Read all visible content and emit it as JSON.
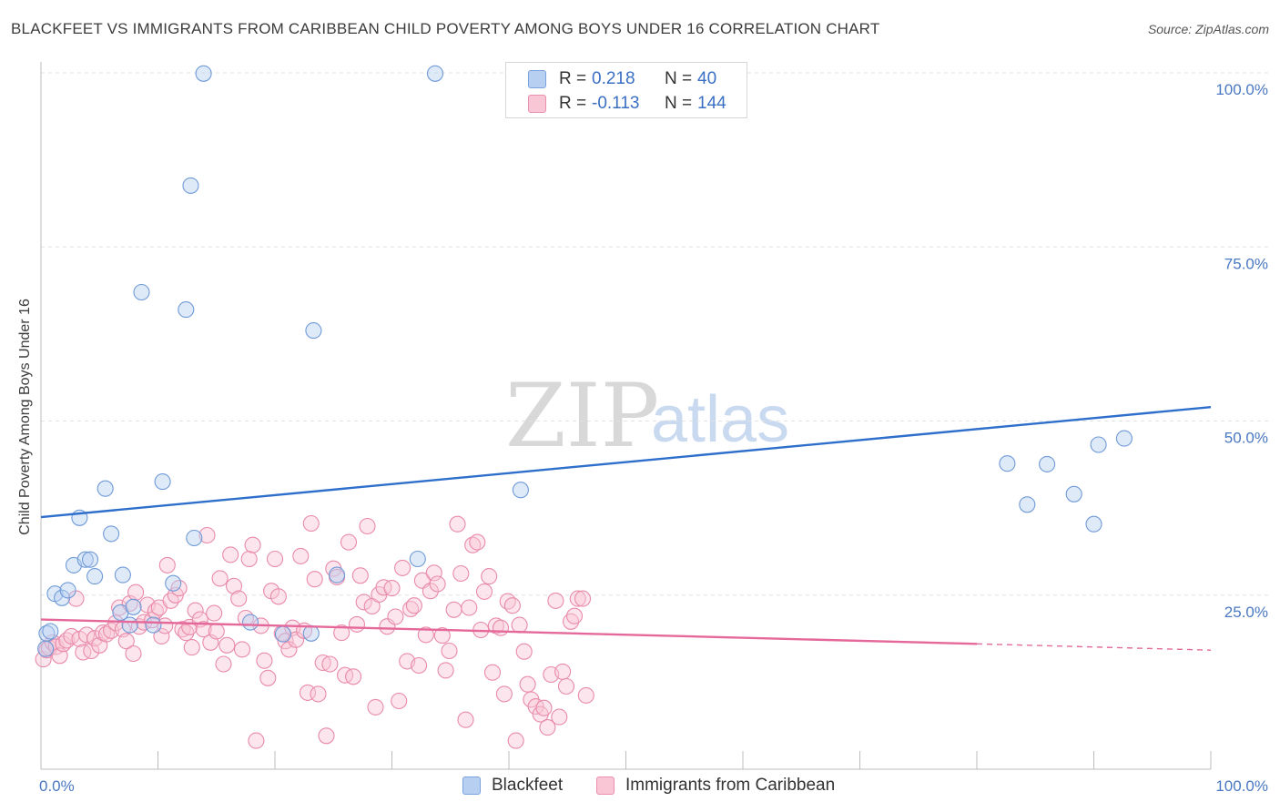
{
  "header": {
    "title": "BLACKFEET VS IMMIGRANTS FROM CARIBBEAN CHILD POVERTY AMONG BOYS UNDER 16 CORRELATION CHART",
    "source": "Source: ZipAtlas.com"
  },
  "watermark": {
    "zip": "ZIP",
    "atlas": "atlas"
  },
  "legend": {
    "rows": [
      {
        "r_label": "R =",
        "r_value": "0.218",
        "n_label": "N =",
        "n_value": "40"
      },
      {
        "r_label": "R =",
        "r_value": "-0.113",
        "n_label": "N =",
        "n_value": "144"
      }
    ]
  },
  "bottom_legend": {
    "series1": "Blackfeet",
    "series2": "Immigrants from Caribbean"
  },
  "colors": {
    "blue_fill": "#b7d0f2",
    "blue_stroke": "#6f9ad8",
    "blue_line": "#2f6fcc",
    "pink_fill": "#f8c6d5",
    "pink_stroke": "#e98aab",
    "pink_line": "#e4699a",
    "tick_text": "#4a78c2",
    "grid": "#e2e2e2"
  },
  "chart_data": {
    "type": "scatter",
    "title": "BLACKFEET VS IMMIGRANTS FROM CARIBBEAN CHILD POVERTY AMONG BOYS UNDER 16 CORRELATION CHART",
    "xlabel": "",
    "ylabel": "Child Poverty Among Boys Under 16",
    "xlim": [
      0,
      100
    ],
    "ylim": [
      0,
      100
    ],
    "x_tick_labels": [
      "0.0%",
      "100.0%"
    ],
    "y_ticks": [
      25,
      50,
      75,
      100
    ],
    "y_tick_labels": [
      "25.0%",
      "50.0%",
      "75.0%",
      "100.0%"
    ],
    "grid": true,
    "series": [
      {
        "name": "Blackfeet",
        "color": "#b7d0f2",
        "points": [
          [
            0.5,
            19.5
          ],
          [
            0.8,
            19.8
          ],
          [
            1.2,
            25.2
          ],
          [
            1.8,
            24.6
          ],
          [
            2.3,
            25.7
          ],
          [
            2.8,
            29.3
          ],
          [
            3.3,
            36.1
          ],
          [
            3.8,
            30.1
          ],
          [
            4.2,
            30.1
          ],
          [
            4.6,
            27.7
          ],
          [
            5.5,
            40.3
          ],
          [
            6.0,
            33.8
          ],
          [
            6.8,
            22.5
          ],
          [
            7.0,
            27.9
          ],
          [
            7.6,
            20.7
          ],
          [
            7.9,
            23.3
          ],
          [
            8.6,
            68.5
          ],
          [
            9.6,
            20.7
          ],
          [
            10.4,
            41.3
          ],
          [
            11.3,
            26.7
          ],
          [
            12.4,
            66.0
          ],
          [
            12.8,
            83.8
          ],
          [
            13.1,
            33.2
          ],
          [
            13.9,
            99.9
          ],
          [
            17.9,
            21.1
          ],
          [
            20.7,
            19.4
          ],
          [
            23.1,
            19.5
          ],
          [
            23.3,
            63.0
          ],
          [
            25.3,
            27.9
          ],
          [
            32.2,
            30.2
          ],
          [
            33.7,
            99.9
          ],
          [
            41.0,
            40.1
          ],
          [
            82.6,
            43.9
          ],
          [
            84.3,
            38.0
          ],
          [
            86.0,
            43.8
          ],
          [
            88.3,
            39.5
          ],
          [
            90.0,
            35.2
          ],
          [
            90.4,
            46.6
          ],
          [
            92.6,
            47.5
          ],
          [
            0.4,
            17.3
          ]
        ]
      },
      {
        "name": "Immigrants from Caribbean",
        "color": "#f8c6d5",
        "points": [
          [
            0.2,
            15.8
          ],
          [
            0.5,
            17.1
          ],
          [
            0.7,
            17.4
          ],
          [
            1.0,
            18.2
          ],
          [
            1.3,
            17.6
          ],
          [
            1.6,
            16.3
          ],
          [
            1.9,
            18.0
          ],
          [
            2.2,
            18.5
          ],
          [
            2.6,
            19.1
          ],
          [
            3.0,
            24.5
          ],
          [
            3.3,
            18.7
          ],
          [
            3.6,
            16.8
          ],
          [
            3.9,
            19.3
          ],
          [
            4.3,
            17.0
          ],
          [
            4.6,
            18.8
          ],
          [
            5.0,
            17.8
          ],
          [
            5.3,
            19.6
          ],
          [
            5.6,
            19.4
          ],
          [
            6.0,
            19.9
          ],
          [
            6.4,
            21.0
          ],
          [
            6.7,
            23.2
          ],
          [
            7.0,
            20.1
          ],
          [
            7.3,
            18.4
          ],
          [
            7.6,
            23.8
          ],
          [
            7.9,
            16.6
          ],
          [
            8.1,
            25.4
          ],
          [
            8.4,
            20.5
          ],
          [
            8.8,
            21.1
          ],
          [
            9.1,
            23.6
          ],
          [
            9.5,
            21.4
          ],
          [
            9.8,
            22.7
          ],
          [
            10.1,
            23.2
          ],
          [
            10.3,
            19.1
          ],
          [
            10.6,
            20.6
          ],
          [
            10.8,
            29.3
          ],
          [
            11.1,
            24.2
          ],
          [
            11.5,
            25.0
          ],
          [
            11.8,
            26.0
          ],
          [
            12.1,
            20.1
          ],
          [
            12.4,
            19.6
          ],
          [
            12.7,
            20.4
          ],
          [
            12.9,
            17.5
          ],
          [
            13.2,
            22.8
          ],
          [
            13.6,
            21.5
          ],
          [
            13.9,
            20.1
          ],
          [
            14.2,
            33.6
          ],
          [
            14.5,
            18.2
          ],
          [
            14.8,
            22.4
          ],
          [
            15.0,
            19.8
          ],
          [
            15.3,
            27.4
          ],
          [
            15.6,
            15.1
          ],
          [
            15.9,
            17.8
          ],
          [
            16.2,
            30.8
          ],
          [
            16.5,
            26.3
          ],
          [
            16.9,
            24.5
          ],
          [
            17.2,
            17.2
          ],
          [
            17.5,
            21.7
          ],
          [
            17.8,
            30.2
          ],
          [
            18.1,
            32.2
          ],
          [
            18.4,
            4.1
          ],
          [
            18.8,
            20.6
          ],
          [
            19.1,
            15.6
          ],
          [
            19.4,
            13.1
          ],
          [
            19.7,
            25.6
          ],
          [
            20.0,
            30.2
          ],
          [
            20.3,
            24.8
          ],
          [
            20.6,
            19.5
          ],
          [
            20.9,
            18.4
          ],
          [
            21.2,
            17.2
          ],
          [
            21.5,
            20.3
          ],
          [
            21.8,
            18.6
          ],
          [
            22.2,
            30.6
          ],
          [
            22.5,
            19.9
          ],
          [
            22.8,
            11.0
          ],
          [
            23.1,
            35.3
          ],
          [
            23.4,
            27.3
          ],
          [
            23.7,
            10.8
          ],
          [
            24.1,
            15.3
          ],
          [
            24.4,
            4.8
          ],
          [
            24.7,
            15.1
          ],
          [
            25.0,
            28.8
          ],
          [
            25.3,
            27.6
          ],
          [
            25.7,
            19.6
          ],
          [
            26.0,
            13.5
          ],
          [
            26.3,
            32.6
          ],
          [
            26.7,
            13.3
          ],
          [
            27.0,
            20.8
          ],
          [
            27.3,
            27.8
          ],
          [
            27.6,
            24.0
          ],
          [
            27.9,
            34.9
          ],
          [
            28.3,
            23.4
          ],
          [
            28.6,
            8.9
          ],
          [
            28.9,
            25.1
          ],
          [
            29.3,
            26.1
          ],
          [
            29.6,
            20.5
          ],
          [
            30.0,
            26.0
          ],
          [
            30.3,
            21.9
          ],
          [
            30.6,
            9.8
          ],
          [
            30.9,
            28.9
          ],
          [
            31.3,
            15.5
          ],
          [
            31.6,
            23.0
          ],
          [
            31.9,
            23.5
          ],
          [
            32.3,
            14.9
          ],
          [
            32.6,
            27.1
          ],
          [
            32.9,
            19.3
          ],
          [
            33.3,
            25.6
          ],
          [
            33.6,
            28.2
          ],
          [
            33.9,
            26.6
          ],
          [
            34.3,
            19.2
          ],
          [
            34.6,
            14.2
          ],
          [
            34.9,
            17.0
          ],
          [
            35.3,
            22.9
          ],
          [
            35.6,
            35.2
          ],
          [
            35.9,
            28.1
          ],
          [
            36.3,
            7.1
          ],
          [
            36.6,
            23.2
          ],
          [
            36.9,
            32.2
          ],
          [
            37.3,
            32.6
          ],
          [
            37.6,
            20.0
          ],
          [
            37.9,
            25.5
          ],
          [
            38.3,
            27.7
          ],
          [
            38.6,
            13.9
          ],
          [
            38.9,
            20.6
          ],
          [
            39.3,
            20.3
          ],
          [
            39.6,
            10.8
          ],
          [
            39.9,
            24.1
          ],
          [
            40.3,
            23.5
          ],
          [
            40.6,
            4.1
          ],
          [
            40.9,
            20.7
          ],
          [
            41.3,
            16.9
          ],
          [
            41.6,
            12.2
          ],
          [
            41.9,
            10.0
          ],
          [
            42.3,
            9.0
          ],
          [
            42.7,
            7.9
          ],
          [
            43.0,
            8.8
          ],
          [
            43.3,
            6.0
          ],
          [
            43.6,
            13.6
          ],
          [
            44.0,
            24.2
          ],
          [
            44.3,
            7.5
          ],
          [
            44.6,
            14.0
          ],
          [
            44.9,
            11.9
          ],
          [
            45.3,
            21.2
          ],
          [
            45.6,
            22.0
          ],
          [
            45.9,
            24.5
          ],
          [
            46.3,
            24.5
          ],
          [
            46.6,
            10.6
          ]
        ]
      }
    ],
    "trend_lines": [
      {
        "series": "Blackfeet",
        "x": [
          0,
          100
        ],
        "y": [
          36.2,
          52.0
        ]
      },
      {
        "series": "Immigrants from Caribbean",
        "x": [
          0,
          80
        ],
        "y": [
          21.5,
          18.0
        ],
        "dashed_extension": {
          "x": [
            80,
            100
          ],
          "y": [
            18.0,
            17.1
          ]
        }
      }
    ]
  }
}
